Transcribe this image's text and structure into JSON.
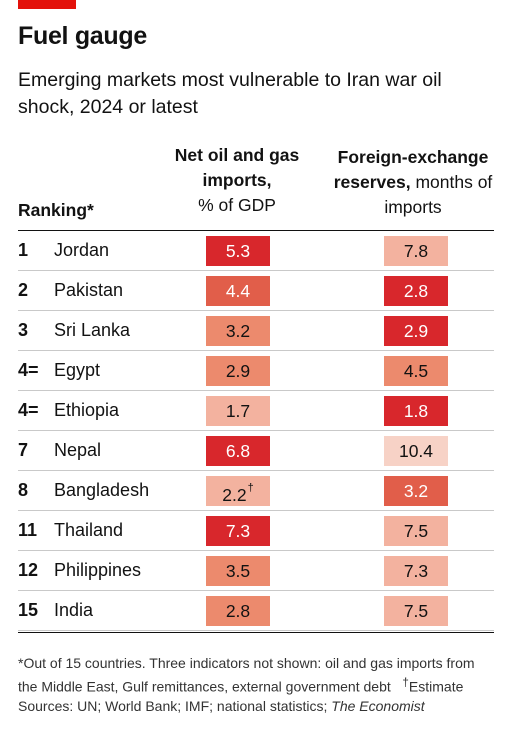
{
  "header": {
    "title": "Fuel gauge",
    "subtitle": "Emerging markets most vulnerable to Iran war oil shock, 2024 or latest",
    "accent_color": "#e3120b"
  },
  "columns": {
    "rank": "Ranking*",
    "oil_bold": "Net oil and gas imports,",
    "oil_unit": "% of GDP",
    "fx_bold": "Foreign-exchange reserves,",
    "fx_unit": "months of imports"
  },
  "chart_data": {
    "type": "table",
    "title": "Fuel gauge",
    "subtitle": "Emerging markets most vulnerable to Iran war oil shock, 2024 or latest",
    "columns": [
      "Ranking*",
      "Net oil and gas imports, % of GDP",
      "Foreign-exchange reserves, months of imports"
    ],
    "color_scale": [
      "#f7d2c6",
      "#f3b29f",
      "#ec8a6d",
      "#e15e4a",
      "#d8272c"
    ],
    "rows": [
      {
        "rank": "1",
        "country": "Jordan",
        "oil": "5.3",
        "oil_mark": "",
        "oil_color": "#d8272c",
        "fx": "7.8",
        "fx_color": "#f3b29f"
      },
      {
        "rank": "2",
        "country": "Pakistan",
        "oil": "4.4",
        "oil_mark": "",
        "oil_color": "#e15e4a",
        "fx": "2.8",
        "fx_color": "#d8272c"
      },
      {
        "rank": "3",
        "country": "Sri Lanka",
        "oil": "3.2",
        "oil_mark": "",
        "oil_color": "#ec8a6d",
        "fx": "2.9",
        "fx_color": "#d8272c"
      },
      {
        "rank": "4=",
        "country": "Egypt",
        "oil": "2.9",
        "oil_mark": "",
        "oil_color": "#ec8a6d",
        "fx": "4.5",
        "fx_color": "#ec8a6d"
      },
      {
        "rank": "4=",
        "country": "Ethiopia",
        "oil": "1.7",
        "oil_mark": "",
        "oil_color": "#f3b29f",
        "fx": "1.8",
        "fx_color": "#d8272c"
      },
      {
        "rank": "7",
        "country": "Nepal",
        "oil": "6.8",
        "oil_mark": "",
        "oil_color": "#d8272c",
        "fx": "10.4",
        "fx_color": "#f7d2c6"
      },
      {
        "rank": "8",
        "country": "Bangladesh",
        "oil": "2.2",
        "oil_mark": "†",
        "oil_color": "#f3b29f",
        "fx": "3.2",
        "fx_color": "#e15e4a"
      },
      {
        "rank": "11",
        "country": "Thailand",
        "oil": "7.3",
        "oil_mark": "",
        "oil_color": "#d8272c",
        "fx": "7.5",
        "fx_color": "#f3b29f"
      },
      {
        "rank": "12",
        "country": "Philippines",
        "oil": "3.5",
        "oil_mark": "",
        "oil_color": "#ec8a6d",
        "fx": "7.3",
        "fx_color": "#f3b29f"
      },
      {
        "rank": "15",
        "country": "India",
        "oil": "2.8",
        "oil_mark": "",
        "oil_color": "#ec8a6d",
        "fx": "7.5",
        "fx_color": "#f3b29f"
      }
    ]
  },
  "footnotes": {
    "note": "*Out of 15 countries. Three indicators not shown: oil and gas imports from the Middle East, Gulf remittances, external government debt",
    "estimate_mark": "†",
    "estimate_label": "Estimate",
    "sources": "Sources: UN; World Bank; IMF; national statistics;",
    "sources_italic": "The Economist"
  }
}
